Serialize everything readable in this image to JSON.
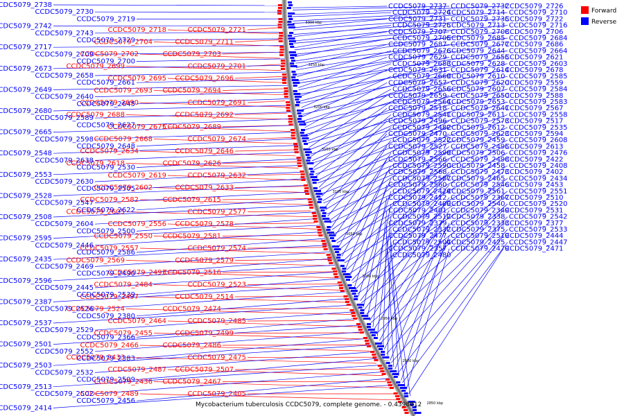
{
  "legend": {
    "forward": {
      "label": "Forward",
      "color": "#ff0000"
    },
    "reverse": {
      "label": "Reverse",
      "color": "#0000ff"
    }
  },
  "caption": "Mycobacterium tuberculosis CCDC5079, complete genome. - 0.4398812",
  "ticks": [
    "3300 kbp",
    "3250 kbp",
    "3200 kbp",
    "3150 kbp",
    "3100 kbp",
    "3050 kbp",
    "3000 kbp",
    "2950 kbp",
    "2900 kbp",
    "2850 kbp"
  ],
  "genes_forward": [
    "CCDC5079_2721",
    "CCDC5079_2718",
    "CCDC5079_2711",
    "CCDC5079_2704",
    "CCDC5079_2703",
    "CCDC5079_2702",
    "CCDC5079_2701",
    "CCDC5079_2699",
    "CCDC5079_2696",
    "CCDC5079_2695",
    "CCDC5079_2694",
    "CCDC5079_2693",
    "CCDC5079_2691",
    "CCDC5079_2690",
    "CCDC5079_2692",
    "CCDC5079_2688",
    "CCDC5079_2689",
    "CCDC5079_2675",
    "CCDC5079_2674",
    "CCDC5079_2668",
    "CCDC5079_2646",
    "CCDC5079_2634",
    "CCDC5079_2626",
    "CCDC5079_2618",
    "CCDC5079_2632",
    "CCDC5079_2619",
    "CCDC5079_2633",
    "CCDC5079_2602",
    "CCDC5079_2615",
    "CCDC5079_2582",
    "CCDC5079_2577",
    "CCDC5079_2605",
    "CCDC5079_2578",
    "CCDC5079_2556",
    "CCDC5079_2581",
    "CCDC5079_2550",
    "CCDC5079_2574",
    "CCDC5079_2557",
    "CCDC5079_2579",
    "CCDC5079_2569",
    "CCDC5079_2516",
    "CCDC5079_2493",
    "CCDC5079_2523",
    "CCDC5079_2484",
    "CCDC5079_2514",
    "CCDC5079_2497",
    "CCDC5079_2474",
    "CCDC5079_2524",
    "CCDC5079_2485",
    "CCDC5079_2464",
    "CCDC5079_2499",
    "CCDC5079_2455",
    "CCDC5079_2486",
    "CCDC5079_2466",
    "CCDC5079_2475",
    "CCDC5079_2433",
    "CCDC5079_2507",
    "CCDC5079_2487",
    "CCDC5079_2467",
    "CCDC5079_2436",
    "CCDC5079_2405",
    "CCDC5079_2489"
  ],
  "genes_reverse": [
    "CCDC5079_2738",
    "CCDC5079_2737",
    "CCDC5079_2732",
    "CCDC5079_2730",
    "CCDC5079_2726",
    "CCDC5079_2724",
    "CCDC5079_2719",
    "CCDC5079_2714",
    "CCDC5079_2710",
    "CCDC5079_2742",
    "CCDC5079_2731",
    "CCDC5079_2735",
    "CCDC5079_2743",
    "CCDC5079_2722",
    "CCDC5079_2725",
    "CCDC5079_2729",
    "CCDC5079_2713",
    "CCDC5079_2716",
    "CCDC5079_2717",
    "CCDC5079_2707",
    "CCDC5079_2708",
    "CCDC5079_2709",
    "CCDC5079_2706",
    "CCDC5079_2705",
    "CCDC5079_2700",
    "CCDC5079_2685",
    "CCDC5079_2684",
    "CCDC5079_2673",
    "CCDC5079_2687",
    "CCDC5079_2677",
    "CCDC5079_2658",
    "CCDC5079_2686",
    "CCDC5079_2676",
    "CCDC5079_2661",
    "CCDC5079_2644",
    "CCDC5079_2664",
    "CCDC5079_2649",
    "CCDC5079_2629",
    "CCDC5079_2655",
    "CCDC5079_2640",
    "CCDC5079_2621",
    "CCDC5079_2683",
    "CCDC5079_2645",
    "CCDC5079_2628",
    "CCDC5079_2603",
    "CCDC5079_2680",
    "CCDC5079_2631",
    "CCDC5079_2614",
    "CCDC5079_2589",
    "CCDC5079_2678",
    "CCDC5079_2669",
    "CCDC5079_2627",
    "CCDC5079_2610",
    "CCDC5079_2585",
    "CCDC5079_2665",
    "CCDC5079_2657",
    "CCDC5079_2620",
    "CCDC5079_2598",
    "CCDC5079_2559",
    "CCDC5079_2656",
    "CCDC5079_2648",
    "CCDC5079_2607",
    "CCDC5079_2584",
    "CCDC5079_2548",
    "CCDC5079_2659",
    "CCDC5079_2650",
    "CCDC5079_2638",
    "CCDC5079_2588",
    "CCDC5079_2564",
    "CCDC5079_2530",
    "CCDC5079_2653",
    "CCDC5079_2583",
    "CCDC5079_2553",
    "CCDC5079_2518",
    "CCDC5079_2641",
    "CCDC5079_2630",
    "CCDC5079_2567",
    "CCDC5079_2541",
    "CCDC5079_2505",
    "CCDC5079_2611",
    "CCDC5079_2558",
    "CCDC5079_2528",
    "CCDC5079_2496",
    "CCDC5079_2573",
    "CCDC5079_2547",
    "CCDC5079_2517",
    "CCDC5079_2482",
    "CCDC5079_2622",
    "CCDC5079_2612",
    "CCDC5079_2535",
    "CCDC5079_2508",
    "CCDC5079_2470",
    "CCDC5079_2623",
    "CCDC5079_2604",
    "CCDC5079_2594",
    "CCDC5079_2522",
    "CCDC5079_2500",
    "CCDC5079_2459",
    "CCDC5079_2608",
    "CCDC5079_2595",
    "CCDC5079_2527",
    "CCDC5079_2495",
    "CCDC5079_2446",
    "CCDC5079_2613",
    "CCDC5079_2599",
    "CCDC5079_2586",
    "CCDC5079_2506",
    "CCDC5079_2476",
    "CCDC5079_2435",
    "CCDC5079_2566",
    "CCDC5079_2498",
    "CCDC5079_2469",
    "CCDC5079_2422",
    "CCDC5079_2590",
    "CCDC5079_2490",
    "CCDC5079_2458",
    "CCDC5079_2408",
    "CCDC5079_2596",
    "CCDC5079_2568",
    "CCDC5079_2473",
    "CCDC5079_2445",
    "CCDC5079_2402",
    "CCDC5079_2587",
    "CCDC5079_2539",
    "CCDC5079_2465",
    "CCDC5079_2434",
    "CCDC5079_2387",
    "CCDC5079_2560",
    "CCDC5079_2546",
    "CCDC5079_2526",
    "CCDC5079_2453",
    "CCDC5079_2424",
    "CCDC5079_2380",
    "CCDC5079_2561",
    "CCDC5079_2551",
    "CCDC5079_2537",
    "CCDC5079_2412",
    "CCDC5079_2367",
    "CCDC5079_2529",
    "CCDC5079_2510",
    "CCDC5079_2409",
    "CCDC5079_2366",
    "CCDC5079_2540",
    "CCDC5079_2520",
    "CCDC5079_2501",
    "CCDC5079_2401",
    "CCDC5079_2349",
    "CCDC5079_2552",
    "CCDC5079_2531",
    "CCDC5079_2512",
    "CCDC5079_2383",
    "CCDC5079_2338",
    "CCDC5079_2542",
    "CCDC5079_2503",
    "CCDC5079_2379",
    "CCDC5079_2333",
    "CCDC5079_2532",
    "CCDC5079_2377",
    "CCDC5079_2332",
    "CCDC5079_2509",
    "CCDC5079_2375",
    "CCDC5079_2533",
    "CCDC5079_2513",
    "CCDC5079_2477",
    "CCDC5079_2519",
    "CCDC5079_2502",
    "CCDC5079_2444",
    "CCDC5079_2504",
    "CCDC5079_2456",
    "CCDC5079_2425",
    "CCDC5079_2447",
    "CCDC5079_2414",
    "CCDC5079_2357",
    "CCDC5079_2479",
    "CCDC5079_2460",
    "CCDC5079_2471",
    "CCDC5079_2480",
    "CCDC5079_2461"
  ],
  "colors": {
    "forward": "#ff0000",
    "reverse": "#0000ff",
    "backbone": "#7a7a7a"
  }
}
